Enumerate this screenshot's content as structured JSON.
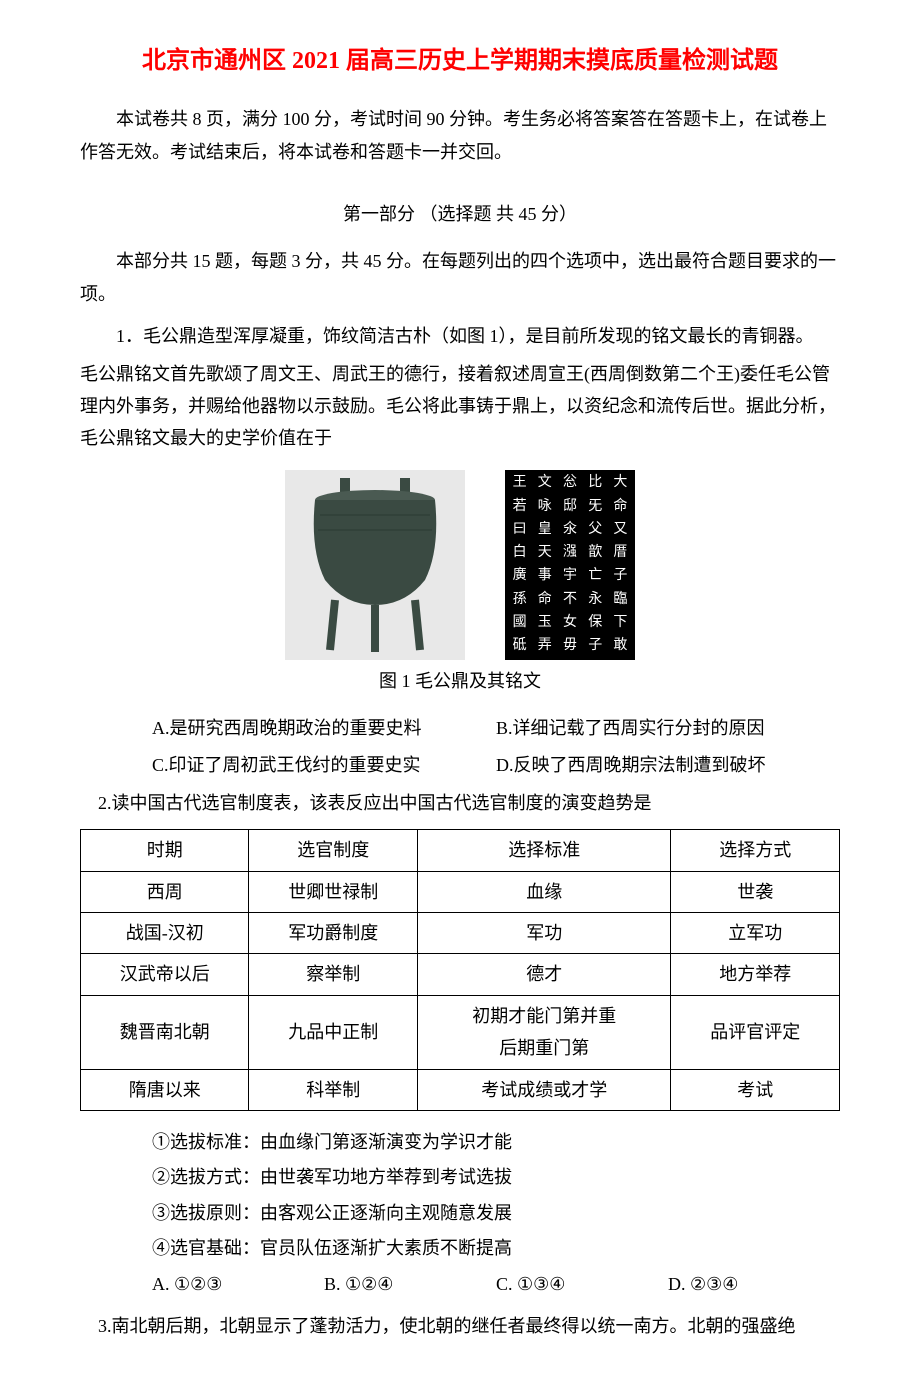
{
  "title": "北京市通州区 2021 届高三历史上学期期末摸底质量检测试题",
  "intro": "本试卷共 8 页，满分 100 分，考试时间 90 分钟。考生务必将答案答在答题卡上，在试卷上作答无效。考试结束后，将本试卷和答题卡一并交回。",
  "sectionHeader": "第一部分 （选择题  共 45 分）",
  "instructions": "本部分共 15 题，每题 3 分，共 45 分。在每题列出的四个选项中，选出最符合题目要求的一项。",
  "q1": {
    "line1": "1．毛公鼎造型浑厚凝重，饰纹简洁古朴（如图 1），是目前所发现的铭文最长的青铜器。",
    "line2": "毛公鼎铭文首先歌颂了周文王、周武王的德行，接着叙述周宣王(西周倒数第二个王)委任毛公管理内外事务，并赐给他器物以示鼓励。毛公将此事铸于鼎上，以资纪念和流传后世。据此分析，毛公鼎铭文最大的史学价值在于",
    "caption": "图 1  毛公鼎及其铭文",
    "optA": "A.是研究西周晚期政治的重要史料",
    "optB": "B.详细记载了西周实行分封的原因",
    "optC": "C.印证了周初武王伐纣的重要史实",
    "optD": "D.反映了西周晚期宗法制遭到破坏"
  },
  "q2": {
    "intro": "2.读中国古代选官制度表，该表反应出中国古代选官制度的演变趋势是",
    "table": {
      "headers": [
        "时期",
        "选官制度",
        "选择标准",
        "选择方式"
      ],
      "rows": [
        [
          "西周",
          "世卿世禄制",
          "血缘",
          "世袭"
        ],
        [
          "战国-汉初",
          "军功爵制度",
          "军功",
          "立军功"
        ],
        [
          "汉武帝以后",
          "察举制",
          "德才",
          "地方举荐"
        ],
        [
          "魏晋南北朝",
          "九品中正制",
          "初期才能门第并重\n后期重门第",
          "品评官评定"
        ],
        [
          "隋唐以来",
          "科举制",
          "考试成绩或才学",
          "考试"
        ]
      ]
    },
    "item1": "①选拔标准：由血缘门第逐渐演变为学识才能",
    "item2": "②选拔方式：由世袭军功地方举荐到考试选拔",
    "item3": "③选拔原则：由客观公正逐渐向主观随意发展",
    "item4": "④选官基础：官员队伍逐渐扩大素质不断提高",
    "optA": "A. ①②③",
    "optB": "B. ①②④",
    "optC": "C. ①③④",
    "optD": "D. ②③④"
  },
  "q3": {
    "text": "3.南北朝后期，北朝显示了蓬勃活力，使北朝的继任者最终得以统一南方。北朝的强盛绝"
  },
  "inscriptionChars": [
    "王",
    "文",
    "忩",
    "比",
    "大",
    "若",
    "咏",
    "邸",
    "旡",
    "命",
    "曰",
    "皇",
    "氽",
    "父",
    "又",
    "白",
    "天",
    "漒",
    "歆",
    "厝",
    "廣",
    "事",
    "宇",
    "亡",
    "子",
    "孫",
    "命",
    "不",
    "永",
    "臨",
    "國",
    "玉",
    "女",
    "保",
    "下",
    "砥",
    "弄",
    "毋",
    "子",
    "敢"
  ]
}
